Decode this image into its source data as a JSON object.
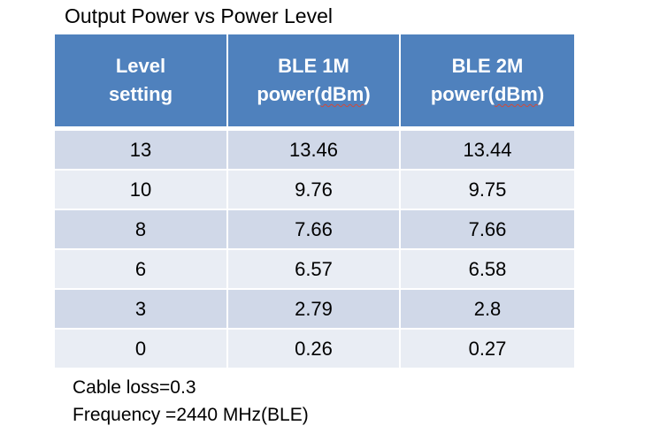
{
  "title": "Output Power vs Power Level",
  "table": {
    "headers": [
      {
        "line1": "Level",
        "line2": "setting"
      },
      {
        "line1": "BLE 1M",
        "line2_pre": "power(",
        "line2_unit": "dBm",
        "line2_post": ")"
      },
      {
        "line1": "BLE 2M",
        "line2_pre": "power(",
        "line2_unit": "dBm",
        "line2_post": ")"
      }
    ],
    "rows": [
      [
        "13",
        "13.46",
        "13.44"
      ],
      [
        "10",
        "9.76",
        "9.75"
      ],
      [
        "8",
        "7.66",
        "7.66"
      ],
      [
        "6",
        "6.57",
        "6.58"
      ],
      [
        "3",
        "2.79",
        "2.8"
      ],
      [
        "0",
        "0.26",
        "0.27"
      ]
    ]
  },
  "notes": {
    "cable_loss": "Cable loss=0.3",
    "frequency": "Frequency =2440 MHz(BLE)"
  },
  "colors": {
    "header_bg": "#4f81bd",
    "row_odd_bg": "#d0d8e8",
    "row_even_bg": "#e9edf4"
  }
}
